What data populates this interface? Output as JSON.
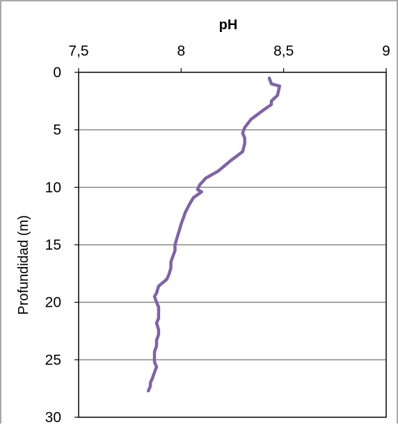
{
  "chart_data": {
    "type": "line",
    "title": "",
    "xlabel": "pH",
    "ylabel": "Profundidad (m)",
    "x_axis_position": "top",
    "y_axis_inverted": true,
    "xlim": [
      7.5,
      9
    ],
    "ylim": [
      0,
      30
    ],
    "x_ticks": [
      7.5,
      8,
      8.5,
      9
    ],
    "x_tick_labels": [
      "7,5",
      "8",
      "8,5",
      "9"
    ],
    "y_ticks": [
      0,
      5,
      10,
      15,
      20,
      25,
      30
    ],
    "y_tick_labels": [
      "0",
      "5",
      "10",
      "15",
      "20",
      "25",
      "30"
    ],
    "grid": "horizontal",
    "legend": "none",
    "series": [
      {
        "color": "#8064A2",
        "x": [
          8.43,
          8.44,
          8.48,
          8.47,
          8.44,
          8.44,
          8.4,
          8.34,
          8.31,
          8.3,
          8.31,
          8.31,
          8.3,
          8.27,
          8.24,
          8.22,
          8.18,
          8.12,
          8.09,
          8.08,
          8.1,
          8.06,
          8.04,
          8.02,
          8.01,
          8.0,
          7.99,
          7.98,
          7.97,
          7.97,
          7.96,
          7.95,
          7.95,
          7.94,
          7.93,
          7.89,
          7.88,
          7.87,
          7.88,
          7.89,
          7.89,
          7.89,
          7.88,
          7.89,
          7.89,
          7.88,
          7.88,
          7.87,
          7.87,
          7.87,
          7.88,
          7.87,
          7.86,
          7.85,
          7.85,
          7.84
        ],
        "y": [
          0.5,
          1.0,
          1.2,
          2.0,
          2.5,
          2.8,
          3.3,
          4.1,
          4.8,
          5.3,
          5.7,
          6.2,
          6.9,
          7.3,
          7.7,
          8.0,
          8.6,
          9.2,
          9.8,
          10.2,
          10.4,
          10.9,
          11.5,
          12.2,
          12.7,
          13.2,
          13.8,
          14.4,
          15.0,
          15.5,
          16.0,
          16.5,
          17.0,
          17.6,
          18.0,
          18.6,
          19.2,
          19.5,
          20.0,
          20.4,
          20.9,
          21.4,
          21.8,
          22.4,
          22.8,
          23.3,
          23.8,
          24.3,
          24.7,
          25.2,
          25.6,
          26.1,
          26.6,
          27.0,
          27.3,
          27.7
        ]
      }
    ]
  }
}
